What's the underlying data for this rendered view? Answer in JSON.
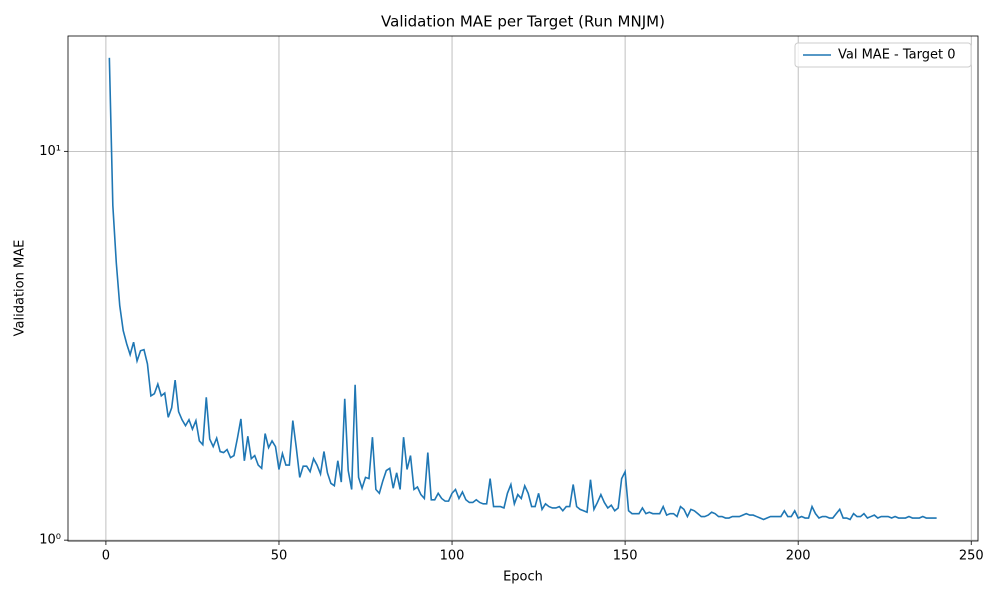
{
  "chart_data": {
    "type": "line",
    "title": "Validation MAE per Target (Run MNJM)",
    "x_label": "Epoch",
    "y_label": "Validation MAE",
    "yscale": "log",
    "grid": true,
    "legend": "upper right",
    "xlim": [
      -10.95,
      251.95
    ],
    "xticks": [
      0,
      50,
      100,
      150,
      200,
      250
    ],
    "ylim": [
      0.995,
      19.8
    ],
    "yticks": [
      {
        "value": 1,
        "label": "10⁰"
      },
      {
        "value": 10,
        "label": "10¹"
      }
    ],
    "x": [
      1,
      2,
      3,
      4,
      5,
      6,
      7,
      8,
      9,
      10,
      11,
      12,
      13,
      14,
      15,
      16,
      17,
      18,
      19,
      20,
      21,
      22,
      23,
      24,
      25,
      26,
      27,
      28,
      29,
      30,
      31,
      32,
      33,
      34,
      35,
      36,
      37,
      38,
      39,
      40,
      41,
      42,
      43,
      44,
      45,
      46,
      47,
      48,
      49,
      50,
      51,
      52,
      53,
      54,
      55,
      56,
      57,
      58,
      59,
      60,
      61,
      62,
      63,
      64,
      65,
      66,
      67,
      68,
      69,
      70,
      71,
      72,
      73,
      74,
      75,
      76,
      77,
      78,
      79,
      80,
      81,
      82,
      83,
      84,
      85,
      86,
      87,
      88,
      89,
      90,
      91,
      92,
      93,
      94,
      95,
      96,
      97,
      98,
      99,
      100,
      101,
      102,
      103,
      104,
      105,
      106,
      107,
      108,
      109,
      110,
      111,
      112,
      113,
      114,
      115,
      116,
      117,
      118,
      119,
      120,
      121,
      122,
      123,
      124,
      125,
      126,
      127,
      128,
      129,
      130,
      131,
      132,
      133,
      134,
      135,
      136,
      137,
      138,
      139,
      140,
      141,
      142,
      143,
      144,
      145,
      146,
      147,
      148,
      149,
      150,
      151,
      152,
      153,
      154,
      155,
      156,
      157,
      158,
      159,
      160,
      161,
      162,
      163,
      164,
      165,
      166,
      167,
      168,
      169,
      170,
      171,
      172,
      173,
      174,
      175,
      176,
      177,
      178,
      179,
      180,
      181,
      182,
      183,
      184,
      185,
      186,
      187,
      188,
      189,
      190,
      191,
      192,
      193,
      194,
      195,
      196,
      197,
      198,
      199,
      200,
      201,
      202,
      203,
      204,
      205,
      206,
      207,
      208,
      209,
      210,
      211,
      212,
      213,
      214,
      215,
      216,
      217,
      218,
      219,
      220,
      221,
      222,
      223,
      224,
      225,
      226,
      227,
      228,
      229,
      230,
      231,
      232,
      233,
      234,
      235,
      236,
      237,
      238,
      239,
      240
    ],
    "series": [
      {
        "name": "Val MAE - Target 0",
        "color": "#1f77b4",
        "values": [
          17.4,
          7.26,
          5.17,
          4.01,
          3.46,
          3.2,
          3.0,
          3.23,
          2.89,
          3.07,
          3.09,
          2.84,
          2.35,
          2.38,
          2.52,
          2.35,
          2.39,
          2.07,
          2.19,
          2.58,
          2.14,
          2.04,
          1.97,
          2.04,
          1.93,
          2.03,
          1.8,
          1.76,
          2.33,
          1.82,
          1.74,
          1.83,
          1.69,
          1.68,
          1.71,
          1.63,
          1.65,
          1.83,
          2.05,
          1.6,
          1.85,
          1.62,
          1.65,
          1.56,
          1.53,
          1.88,
          1.73,
          1.8,
          1.74,
          1.52,
          1.67,
          1.56,
          1.56,
          2.03,
          1.73,
          1.45,
          1.55,
          1.55,
          1.5,
          1.62,
          1.56,
          1.48,
          1.69,
          1.49,
          1.4,
          1.38,
          1.6,
          1.41,
          2.31,
          1.51,
          1.35,
          2.51,
          1.45,
          1.36,
          1.45,
          1.44,
          1.84,
          1.35,
          1.32,
          1.42,
          1.51,
          1.53,
          1.36,
          1.49,
          1.35,
          1.84,
          1.52,
          1.65,
          1.35,
          1.37,
          1.31,
          1.28,
          1.68,
          1.27,
          1.27,
          1.32,
          1.28,
          1.26,
          1.26,
          1.32,
          1.35,
          1.28,
          1.33,
          1.27,
          1.25,
          1.25,
          1.27,
          1.25,
          1.24,
          1.24,
          1.44,
          1.22,
          1.22,
          1.22,
          1.21,
          1.32,
          1.39,
          1.24,
          1.31,
          1.28,
          1.38,
          1.32,
          1.22,
          1.22,
          1.32,
          1.2,
          1.24,
          1.22,
          1.21,
          1.21,
          1.22,
          1.19,
          1.22,
          1.22,
          1.39,
          1.22,
          1.2,
          1.19,
          1.18,
          1.43,
          1.2,
          1.25,
          1.31,
          1.25,
          1.21,
          1.23,
          1.19,
          1.21,
          1.44,
          1.5,
          1.19,
          1.17,
          1.17,
          1.17,
          1.21,
          1.17,
          1.18,
          1.17,
          1.17,
          1.17,
          1.22,
          1.16,
          1.17,
          1.17,
          1.15,
          1.22,
          1.2,
          1.15,
          1.2,
          1.19,
          1.17,
          1.15,
          1.15,
          1.16,
          1.18,
          1.17,
          1.15,
          1.15,
          1.14,
          1.14,
          1.15,
          1.15,
          1.15,
          1.16,
          1.17,
          1.16,
          1.16,
          1.15,
          1.14,
          1.13,
          1.14,
          1.15,
          1.15,
          1.15,
          1.15,
          1.19,
          1.15,
          1.15,
          1.19,
          1.14,
          1.15,
          1.14,
          1.14,
          1.22,
          1.17,
          1.14,
          1.15,
          1.15,
          1.14,
          1.14,
          1.17,
          1.2,
          1.14,
          1.14,
          1.13,
          1.17,
          1.15,
          1.15,
          1.17,
          1.14,
          1.15,
          1.16,
          1.14,
          1.15,
          1.15,
          1.15,
          1.14,
          1.15,
          1.14,
          1.14,
          1.14,
          1.15,
          1.14,
          1.14,
          1.14,
          1.15,
          1.14,
          1.14,
          1.14,
          1.14
        ]
      }
    ]
  }
}
